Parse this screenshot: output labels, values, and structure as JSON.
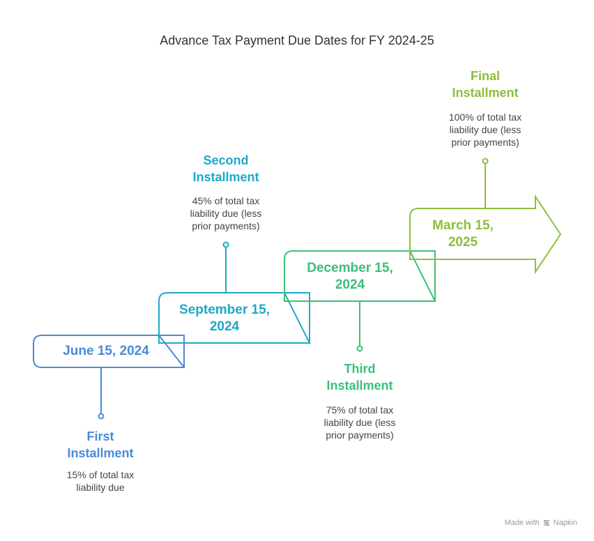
{
  "title": "Advance Tax Payment Due Dates for FY 2024-25",
  "steps": [
    {
      "date_line1": "June 15, 2024",
      "date_line2": "",
      "installment_line1": "First",
      "installment_line2": "Installment",
      "desc_line1": "15% of total tax",
      "desc_line2": "liability due",
      "desc_line3": "",
      "color": "#4a8ad8"
    },
    {
      "date_line1": "September 15,",
      "date_line2": "2024",
      "installment_line1": "Second",
      "installment_line2": "Installment",
      "desc_line1": "45% of total tax",
      "desc_line2": "liability due (less",
      "desc_line3": "prior payments)",
      "color": "#1ea8c8"
    },
    {
      "date_line1": "December 15,",
      "date_line2": "2024",
      "installment_line1": "Third",
      "installment_line2": "Installment",
      "desc_line1": "75% of total tax",
      "desc_line2": "liability due (less",
      "desc_line3": "prior payments)",
      "color": "#3cbf78"
    },
    {
      "date_line1": "March 15,",
      "date_line2": "2025",
      "installment_line1": "Final",
      "installment_line2": "Installment",
      "desc_line1": "100% of total tax",
      "desc_line2": "liability due (less",
      "desc_line3": "prior payments)",
      "color": "#8cbf3a"
    }
  ],
  "footer": {
    "made_with": "Made with",
    "brand": "Napkin"
  }
}
